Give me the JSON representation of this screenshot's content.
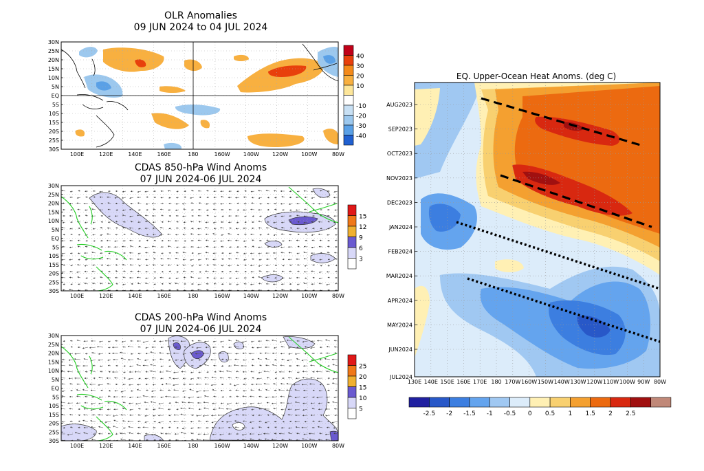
{
  "figure": "Tropical Pacific climate monitoring panels",
  "olr": {
    "title": "OLR Anomalies",
    "date_range": "09 JUN 2024 to 04 JUL 2024",
    "lat_labels": [
      "30N",
      "25N",
      "20N",
      "15N",
      "10N",
      "5N",
      "EQ",
      "5S",
      "10S",
      "15S",
      "20S",
      "25S",
      "30S"
    ],
    "lon_labels": [
      "100E",
      "120E",
      "140E",
      "160E",
      "180",
      "160W",
      "140W",
      "120W",
      "100W",
      "80W"
    ],
    "legend": [
      "40",
      "30",
      "20",
      "10",
      "-10",
      "-20",
      "-30",
      "-40"
    ],
    "colors": [
      "#c00018",
      "#e8400c",
      "#f48a1a",
      "#f8b040",
      "#fde69a",
      "#ffffff",
      "#c8e0f4",
      "#9cc8ee",
      "#5aa0e6",
      "#2060d0"
    ]
  },
  "wind850": {
    "title": "CDAS 850-hPa Wind Anoms",
    "date_range": "07 JUN 2024-06 JUL 2024",
    "lat_labels": [
      "30N",
      "25N",
      "20N",
      "15N",
      "10N",
      "5N",
      "EQ",
      "5S",
      "10S",
      "15S",
      "20S",
      "25S",
      "30S"
    ],
    "lon_labels": [
      "100E",
      "120E",
      "140E",
      "160E",
      "180",
      "160W",
      "140W",
      "120W",
      "100W",
      "80W"
    ],
    "legend": [
      "15",
      "12",
      "9",
      "6",
      "3"
    ],
    "colors": [
      "#e01818",
      "#f07818",
      "#f0b030",
      "#6a5ad0",
      "#d8d8f8",
      "#ffffff"
    ]
  },
  "wind200": {
    "title": "CDAS 200-hPa Wind Anoms",
    "date_range": "07 JUN 2024-06 JUL 2024",
    "lat_labels": [
      "30N",
      "25N",
      "20N",
      "15N",
      "10N",
      "5N",
      "EQ",
      "5S",
      "10S",
      "15S",
      "20S",
      "25S",
      "30S"
    ],
    "lon_labels": [
      "100E",
      "120E",
      "140E",
      "160E",
      "180",
      "160W",
      "140W",
      "120W",
      "100W",
      "80W"
    ],
    "legend": [
      "25",
      "20",
      "15",
      "10",
      "5"
    ],
    "colors": [
      "#e01818",
      "#f07818",
      "#f0b030",
      "#6a5ad0",
      "#d8d8f8",
      "#ffffff"
    ]
  },
  "heat": {
    "title": "EQ. Upper-Ocean Heat Anoms. (deg C)",
    "y_labels": [
      "AUG2023",
      "SEP2023",
      "OCT2023",
      "NOV2023",
      "DEC2023",
      "JAN2024",
      "FEB2024",
      "MAR2024",
      "APR2024",
      "MAY2024",
      "JUN2024",
      "JUL2024"
    ],
    "x_labels": [
      "130E",
      "140E",
      "150E",
      "160E",
      "170E",
      "180",
      "170W",
      "160W",
      "150W",
      "140W",
      "130W",
      "120W",
      "110W",
      "100W",
      "90W",
      "80W"
    ],
    "legend": [
      "-2.5",
      "-2",
      "-1.5",
      "-1",
      "-0.5",
      "0",
      "0.5",
      "1",
      "1.5",
      "2",
      "2.5"
    ],
    "colors": [
      "#2020a0",
      "#2858c8",
      "#3c7ee0",
      "#64a4ee",
      "#a0c8f2",
      "#dcecfa",
      "#fff0b4",
      "#f8d070",
      "#f4a030",
      "#ec6a10",
      "#d82810",
      "#a01010",
      "#c08878"
    ]
  },
  "chart_data": [
    {
      "type": "heatmap",
      "title": "OLR Anomalies",
      "subtitle": "09 JUN 2024 to 04 JUL 2024",
      "x_axis": [
        "100E",
        "120E",
        "140E",
        "160E",
        "180",
        "160W",
        "140W",
        "120W",
        "100W",
        "80W"
      ],
      "y_axis": [
        "30N",
        "25N",
        "20N",
        "15N",
        "10N",
        "5N",
        "EQ",
        "5S",
        "10S",
        "15S",
        "20S",
        "25S",
        "30S"
      ],
      "colorbar_levels": [
        -40,
        -30,
        -20,
        -10,
        10,
        20,
        30,
        40
      ],
      "features": [
        {
          "label": "negative anomaly over Maritime Continent / west Pacific near equator",
          "range": "-10 to -30"
        },
        {
          "label": "positive anomaly north of equator 100E-170E",
          "range": "10 to 30"
        },
        {
          "label": "positive anomaly eastern Pacific 5N-20N 140W-110W",
          "range": "10 to 40"
        },
        {
          "label": "negative anomaly near 180-160W around 5S",
          "range": "-10 to -20"
        }
      ]
    },
    {
      "type": "heatmap",
      "title": "CDAS 850-hPa Wind Anoms",
      "subtitle": "07 JUN 2024-06 JUL 2024",
      "x_axis": [
        "100E",
        "120E",
        "140E",
        "160E",
        "180",
        "160W",
        "140W",
        "120W",
        "100W",
        "80W"
      ],
      "y_axis": [
        "30N",
        "25N",
        "20N",
        "15N",
        "10N",
        "5N",
        "EQ",
        "5S",
        "10S",
        "15S",
        "20S",
        "25S",
        "30S"
      ],
      "colorbar_levels": [
        3,
        6,
        9,
        12,
        15
      ],
      "features": [
        {
          "label": "enhanced winds 10N-20N 130E-160E",
          "range": "3 to 6"
        },
        {
          "label": "enhanced winds eastern Pacific 10N 120W-90W",
          "range": "3 to 6+"
        }
      ]
    },
    {
      "type": "heatmap",
      "title": "CDAS 200-hPa Wind Anoms",
      "subtitle": "07 JUN 2024-06 JUL 2024",
      "x_axis": [
        "100E",
        "120E",
        "140E",
        "160E",
        "180",
        "160W",
        "140W",
        "120W",
        "100W",
        "80W"
      ],
      "y_axis": [
        "30N",
        "25N",
        "20N",
        "15N",
        "10N",
        "5N",
        "EQ",
        "5S",
        "10S",
        "15S",
        "20S",
        "25S",
        "30S"
      ],
      "colorbar_levels": [
        5,
        10,
        15,
        20,
        25
      ],
      "features": [
        {
          "label": "enhanced winds 20N-30N 160E-160W",
          "range": "5 to 10+"
        },
        {
          "label": "enhanced winds south of equator 160W-100W",
          "range": "5 to 10"
        }
      ]
    },
    {
      "type": "heatmap",
      "title": "EQ. Upper-Ocean Heat Anoms. (deg C)",
      "x_axis": [
        "130E",
        "140E",
        "150E",
        "160E",
        "170E",
        "180",
        "170W",
        "160W",
        "150W",
        "140W",
        "130W",
        "120W",
        "110W",
        "100W",
        "90W",
        "80W"
      ],
      "y_axis": [
        "AUG2023",
        "SEP2023",
        "OCT2023",
        "NOV2023",
        "DEC2023",
        "JAN2024",
        "FEB2024",
        "MAR2024",
        "APR2024",
        "MAY2024",
        "JUN2024",
        "JUL2024"
      ],
      "colorbar_levels": [
        -2.5,
        -2,
        -1.5,
        -1,
        -0.5,
        0,
        0.5,
        1,
        1.5,
        2,
        2.5
      ],
      "features": [
        {
          "label": "positive anomalies central-east Pacific Aug 2023 - Jan 2024",
          "range": "1 to 2.5"
        },
        {
          "label": "negative anomalies western Pacific Nov 2023 - Jan 2024",
          "range": "-1 to -2"
        },
        {
          "label": "negative anomalies east Pacific Mar 2024 - Jul 2024",
          "range": "-1 to -2"
        },
        {
          "label": "dashed lines: eastward-propagating downwelling Kelvin waves",
          "count": 2
        },
        {
          "label": "dotted lines: eastward-propagating upwelling Kelvin waves",
          "count": 2
        }
      ]
    }
  ]
}
